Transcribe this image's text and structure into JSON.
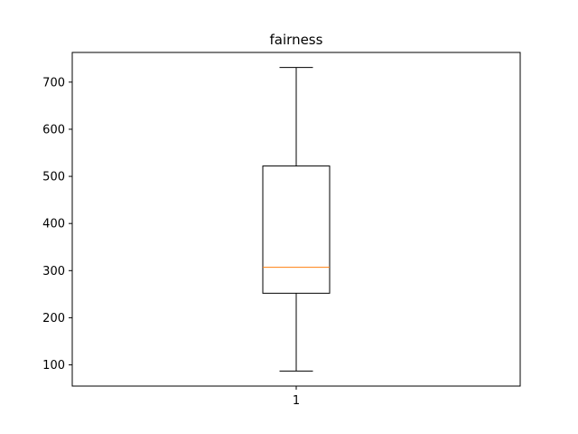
{
  "chart_data": {
    "type": "box",
    "title": "fairness",
    "xlabel": "",
    "ylabel": "",
    "categories": [
      "1"
    ],
    "boxes": [
      {
        "category": "1",
        "whisker_low": 87,
        "q1": 252,
        "median": 307,
        "q3": 522,
        "whisker_high": 731
      }
    ],
    "ylim": [
      55,
      763
    ],
    "yticks": [
      100,
      200,
      300,
      400,
      500,
      600,
      700
    ],
    "grid": false,
    "colors": {
      "box": "#000000",
      "median": "#ff7f0e",
      "axes": "#000000"
    }
  }
}
